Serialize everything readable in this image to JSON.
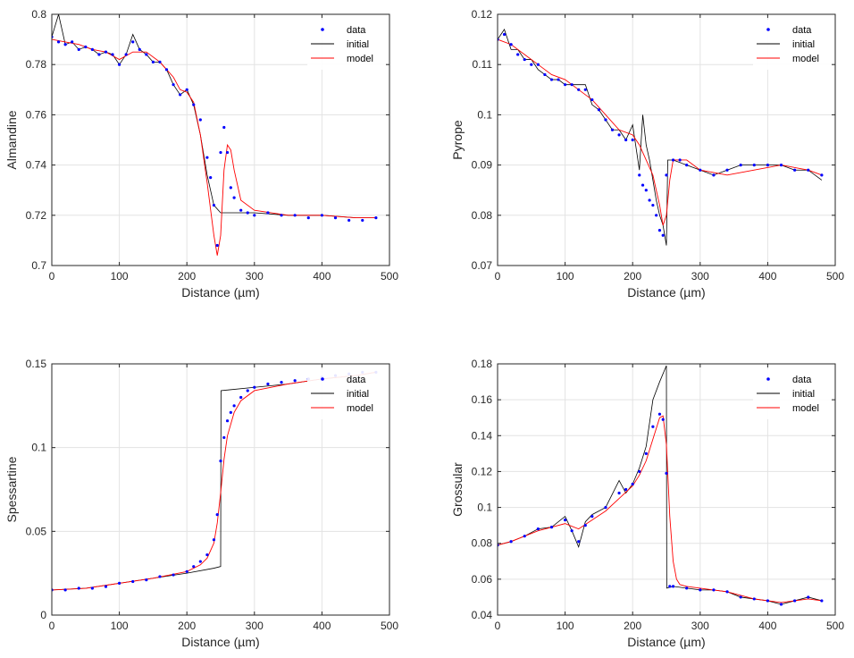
{
  "colors": {
    "data": "#0000ff",
    "initial": "#000000",
    "model": "#ff0000",
    "grid": "#e3e3e3",
    "axis": "#262626"
  },
  "chart_data": [
    {
      "type": "line",
      "ylabel": "Almandine",
      "xlabel": "Distance (µm)",
      "xlim": [
        0,
        500
      ],
      "ylim": [
        0.7,
        0.8
      ],
      "xticks": [
        "0",
        "100",
        "200",
        "300",
        "400",
        "500"
      ],
      "yticks": [
        "0.7",
        "0.72",
        "0.74",
        "0.76",
        "0.78",
        "0.8"
      ],
      "legend": [
        "data",
        "initial",
        "model"
      ],
      "legend_position": "top-right",
      "grid": true,
      "series": [
        {
          "name": "data",
          "style": "points",
          "x": [
            0,
            10,
            20,
            30,
            40,
            50,
            60,
            70,
            80,
            90,
            100,
            110,
            120,
            130,
            140,
            150,
            160,
            170,
            180,
            190,
            200,
            210,
            220,
            230,
            235,
            240,
            245,
            250,
            255,
            260,
            265,
            270,
            280,
            290,
            300,
            320,
            340,
            360,
            380,
            400,
            420,
            440,
            460,
            480
          ],
          "y": [
            0.791,
            0.789,
            0.788,
            0.789,
            0.786,
            0.787,
            0.786,
            0.784,
            0.785,
            0.784,
            0.78,
            0.784,
            0.789,
            0.786,
            0.784,
            0.781,
            0.781,
            0.778,
            0.772,
            0.768,
            0.77,
            0.764,
            0.758,
            0.743,
            0.735,
            0.724,
            0.708,
            0.745,
            0.755,
            0.745,
            0.731,
            0.727,
            0.722,
            0.721,
            0.72,
            0.721,
            0.72,
            0.72,
            0.719,
            0.72,
            0.719,
            0.718,
            0.718,
            0.719
          ]
        },
        {
          "name": "initial",
          "style": "line",
          "x": [
            0,
            10,
            20,
            30,
            40,
            50,
            60,
            70,
            80,
            90,
            100,
            110,
            120,
            130,
            140,
            150,
            160,
            170,
            180,
            190,
            200,
            210,
            220,
            230,
            240,
            250,
            300,
            350,
            400,
            450,
            480
          ],
          "y": [
            0.791,
            0.8,
            0.788,
            0.789,
            0.786,
            0.787,
            0.786,
            0.784,
            0.785,
            0.784,
            0.78,
            0.784,
            0.792,
            0.786,
            0.784,
            0.781,
            0.781,
            0.778,
            0.772,
            0.768,
            0.77,
            0.764,
            0.752,
            0.736,
            0.724,
            0.721,
            0.721,
            0.72,
            0.72,
            0.719,
            0.719
          ]
        },
        {
          "name": "model",
          "style": "line",
          "x": [
            0,
            20,
            40,
            60,
            80,
            100,
            120,
            140,
            160,
            180,
            190,
            200,
            210,
            220,
            230,
            240,
            245,
            250,
            255,
            260,
            265,
            270,
            280,
            300,
            350,
            400,
            450,
            480
          ],
          "y": [
            0.79,
            0.789,
            0.788,
            0.786,
            0.785,
            0.782,
            0.785,
            0.785,
            0.781,
            0.775,
            0.77,
            0.769,
            0.765,
            0.752,
            0.733,
            0.712,
            0.704,
            0.712,
            0.738,
            0.748,
            0.746,
            0.738,
            0.726,
            0.722,
            0.72,
            0.72,
            0.719,
            0.719
          ]
        }
      ]
    },
    {
      "type": "line",
      "ylabel": "Pyrope",
      "xlabel": "Distance (µm)",
      "xlim": [
        0,
        500
      ],
      "ylim": [
        0.07,
        0.12
      ],
      "xticks": [
        "0",
        "100",
        "200",
        "300",
        "400",
        "500"
      ],
      "yticks": [
        "0.07",
        "0.08",
        "0.09",
        "0.1",
        "0.11",
        "0.12"
      ],
      "legend": [
        "data",
        "initial",
        "model"
      ],
      "legend_position": "top-right",
      "grid": true,
      "series": [
        {
          "name": "data",
          "style": "points",
          "x": [
            0,
            10,
            20,
            30,
            40,
            50,
            60,
            70,
            80,
            90,
            100,
            110,
            120,
            130,
            140,
            150,
            160,
            170,
            180,
            190,
            200,
            210,
            215,
            220,
            225,
            230,
            235,
            240,
            245,
            250,
            260,
            270,
            280,
            300,
            320,
            340,
            360,
            380,
            400,
            420,
            440,
            460,
            480
          ],
          "y": [
            0.115,
            0.116,
            0.114,
            0.112,
            0.111,
            0.11,
            0.11,
            0.108,
            0.107,
            0.107,
            0.106,
            0.106,
            0.105,
            0.105,
            0.103,
            0.101,
            0.099,
            0.097,
            0.096,
            0.095,
            0.095,
            0.088,
            0.086,
            0.085,
            0.083,
            0.082,
            0.08,
            0.077,
            0.076,
            0.088,
            0.091,
            0.091,
            0.09,
            0.089,
            0.088,
            0.089,
            0.09,
            0.09,
            0.09,
            0.09,
            0.089,
            0.089,
            0.088
          ]
        },
        {
          "name": "initial",
          "style": "line",
          "x": [
            0,
            10,
            20,
            30,
            40,
            50,
            60,
            70,
            80,
            90,
            100,
            110,
            120,
            130,
            140,
            150,
            160,
            170,
            180,
            190,
            200,
            210,
            215,
            220,
            225,
            230,
            235,
            240,
            245,
            250,
            252,
            260,
            280,
            300,
            320,
            340,
            360,
            380,
            400,
            420,
            440,
            460,
            480
          ],
          "y": [
            0.115,
            0.117,
            0.113,
            0.113,
            0.111,
            0.111,
            0.109,
            0.108,
            0.107,
            0.107,
            0.106,
            0.106,
            0.106,
            0.106,
            0.102,
            0.101,
            0.099,
            0.097,
            0.097,
            0.095,
            0.098,
            0.089,
            0.1,
            0.094,
            0.091,
            0.087,
            0.083,
            0.08,
            0.078,
            0.074,
            0.091,
            0.091,
            0.09,
            0.089,
            0.088,
            0.089,
            0.09,
            0.09,
            0.09,
            0.09,
            0.089,
            0.089,
            0.087
          ]
        },
        {
          "name": "model",
          "style": "line",
          "x": [
            0,
            20,
            40,
            60,
            80,
            100,
            120,
            140,
            160,
            180,
            200,
            210,
            220,
            230,
            240,
            245,
            250,
            255,
            260,
            280,
            300,
            340,
            380,
            420,
            460,
            480
          ],
          "y": [
            0.115,
            0.114,
            0.112,
            0.11,
            0.108,
            0.107,
            0.105,
            0.103,
            0.1,
            0.097,
            0.096,
            0.094,
            0.091,
            0.088,
            0.082,
            0.078,
            0.08,
            0.087,
            0.091,
            0.091,
            0.089,
            0.088,
            0.089,
            0.09,
            0.089,
            0.088
          ]
        }
      ]
    },
    {
      "type": "line",
      "ylabel": "Spessartine",
      "xlabel": "Distance (µm)",
      "xlim": [
        0,
        500
      ],
      "ylim": [
        0,
        0.15
      ],
      "xticks": [
        "0",
        "100",
        "200",
        "300",
        "400",
        "500"
      ],
      "yticks": [
        "0",
        "0.05",
        "0.1",
        "0.15"
      ],
      "legend": [
        "data",
        "initial",
        "model"
      ],
      "legend_position": "top-right",
      "grid": true,
      "series": [
        {
          "name": "data",
          "style": "points",
          "x": [
            0,
            20,
            40,
            60,
            80,
            100,
            120,
            140,
            160,
            180,
            200,
            210,
            220,
            230,
            240,
            245,
            250,
            255,
            260,
            265,
            270,
            280,
            290,
            300,
            320,
            340,
            360,
            380,
            400,
            420,
            440,
            460,
            480
          ],
          "y": [
            0.015,
            0.015,
            0.016,
            0.016,
            0.017,
            0.019,
            0.02,
            0.021,
            0.023,
            0.024,
            0.026,
            0.029,
            0.032,
            0.036,
            0.045,
            0.06,
            0.092,
            0.106,
            0.116,
            0.121,
            0.125,
            0.13,
            0.134,
            0.136,
            0.138,
            0.139,
            0.14,
            0.141,
            0.142,
            0.143,
            0.144,
            0.145,
            0.145
          ]
        },
        {
          "name": "initial",
          "style": "line",
          "x": [
            0,
            50,
            100,
            150,
            200,
            240,
            250,
            250.5,
            300,
            350,
            400,
            450,
            480
          ],
          "y": [
            0.015,
            0.016,
            0.019,
            0.022,
            0.025,
            0.028,
            0.029,
            0.134,
            0.136,
            0.138,
            0.141,
            0.143,
            0.145
          ]
        },
        {
          "name": "model",
          "style": "line",
          "x": [
            0,
            50,
            100,
            150,
            200,
            220,
            230,
            240,
            245,
            250,
            255,
            260,
            270,
            280,
            300,
            350,
            400,
            450,
            480
          ],
          "y": [
            0.015,
            0.016,
            0.019,
            0.022,
            0.026,
            0.03,
            0.034,
            0.043,
            0.055,
            0.073,
            0.093,
            0.107,
            0.121,
            0.128,
            0.134,
            0.138,
            0.141,
            0.143,
            0.145
          ]
        }
      ]
    },
    {
      "type": "line",
      "ylabel": "Grossular",
      "xlabel": "Distance (µm)",
      "xlim": [
        0,
        500
      ],
      "ylim": [
        0.04,
        0.18
      ],
      "xticks": [
        "0",
        "100",
        "200",
        "300",
        "400",
        "500"
      ],
      "yticks": [
        "0.04",
        "0.06",
        "0.08",
        "0.1",
        "0.12",
        "0.14",
        "0.16",
        "0.18"
      ],
      "legend": [
        "data",
        "initial",
        "model"
      ],
      "legend_position": "top-right",
      "grid": true,
      "series": [
        {
          "name": "data",
          "style": "points",
          "x": [
            0,
            20,
            40,
            60,
            80,
            100,
            110,
            120,
            130,
            140,
            160,
            180,
            190,
            200,
            210,
            220,
            230,
            240,
            245,
            250,
            255,
            260,
            280,
            300,
            320,
            340,
            360,
            380,
            400,
            420,
            440,
            460,
            480
          ],
          "y": [
            0.079,
            0.081,
            0.084,
            0.088,
            0.089,
            0.093,
            0.087,
            0.081,
            0.09,
            0.095,
            0.1,
            0.108,
            0.11,
            0.113,
            0.12,
            0.13,
            0.145,
            0.152,
            0.149,
            0.119,
            0.056,
            0.056,
            0.055,
            0.054,
            0.054,
            0.053,
            0.05,
            0.049,
            0.048,
            0.046,
            0.048,
            0.05,
            0.048
          ]
        },
        {
          "name": "initial",
          "style": "line",
          "x": [
            0,
            20,
            40,
            60,
            80,
            100,
            110,
            120,
            130,
            140,
            160,
            180,
            190,
            200,
            210,
            220,
            230,
            240,
            250,
            250.5,
            260,
            280,
            300,
            320,
            340,
            360,
            380,
            400,
            420,
            440,
            460,
            480
          ],
          "y": [
            0.079,
            0.081,
            0.084,
            0.088,
            0.089,
            0.095,
            0.087,
            0.078,
            0.092,
            0.096,
            0.1,
            0.115,
            0.108,
            0.113,
            0.122,
            0.134,
            0.16,
            0.17,
            0.179,
            0.055,
            0.056,
            0.055,
            0.054,
            0.054,
            0.053,
            0.05,
            0.049,
            0.048,
            0.046,
            0.048,
            0.05,
            0.048
          ]
        },
        {
          "name": "model",
          "style": "line",
          "x": [
            0,
            20,
            40,
            60,
            80,
            100,
            120,
            140,
            160,
            180,
            200,
            210,
            220,
            230,
            240,
            245,
            250,
            255,
            260,
            265,
            270,
            280,
            300,
            340,
            380,
            420,
            460,
            480
          ],
          "y": [
            0.079,
            0.081,
            0.084,
            0.087,
            0.089,
            0.091,
            0.088,
            0.093,
            0.098,
            0.105,
            0.112,
            0.118,
            0.126,
            0.138,
            0.15,
            0.151,
            0.135,
            0.095,
            0.07,
            0.06,
            0.057,
            0.056,
            0.055,
            0.053,
            0.049,
            0.047,
            0.049,
            0.048
          ]
        }
      ]
    }
  ]
}
